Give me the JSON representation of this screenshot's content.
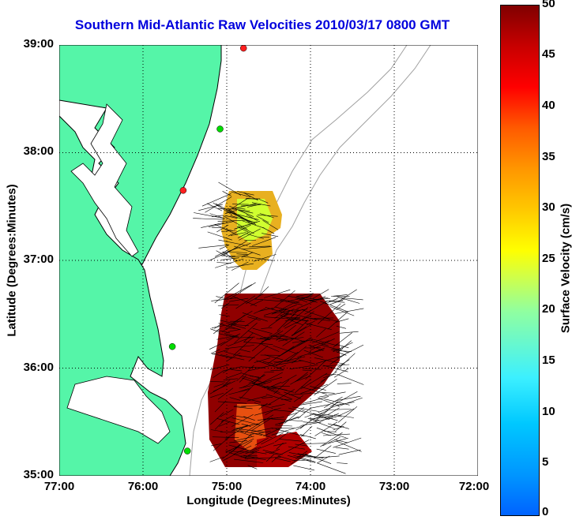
{
  "title": "Southern Mid-Atlantic Raw Velocities 2010/03/17 0800 GMT",
  "axes": {
    "xlabel": "Longitude (Degrees:Minutes)",
    "ylabel": "Latitude (Degrees:Minutes)",
    "xticks": [
      "77:00",
      "76:00",
      "75:00",
      "74:00",
      "73:00",
      "72:00"
    ],
    "yticks": [
      "39:00",
      "38:00",
      "37:00",
      "36:00",
      "35:00"
    ]
  },
  "colorbar": {
    "label": "Surface Velocity (cm/s)",
    "ticks": [
      "50",
      "45",
      "40",
      "35",
      "30",
      "25",
      "20",
      "15",
      "10",
      "5",
      "0"
    ],
    "range": [
      0,
      50
    ]
  },
  "colors": {
    "land": "#55f5a8",
    "title": "#0000dd",
    "coast": "#000000",
    "bathy": "#a0a0a0"
  },
  "stations": [
    {
      "lon": -74.8,
      "lat": 38.97,
      "color": "#ff2020"
    },
    {
      "lon": -75.08,
      "lat": 38.22,
      "color": "#00dd00"
    },
    {
      "lon": -75.52,
      "lat": 37.65,
      "color": "#ff2020"
    },
    {
      "lon": -75.65,
      "lat": 36.2,
      "color": "#00dd00"
    },
    {
      "lon": -75.47,
      "lat": 35.23,
      "color": "#00dd00"
    }
  ]
}
